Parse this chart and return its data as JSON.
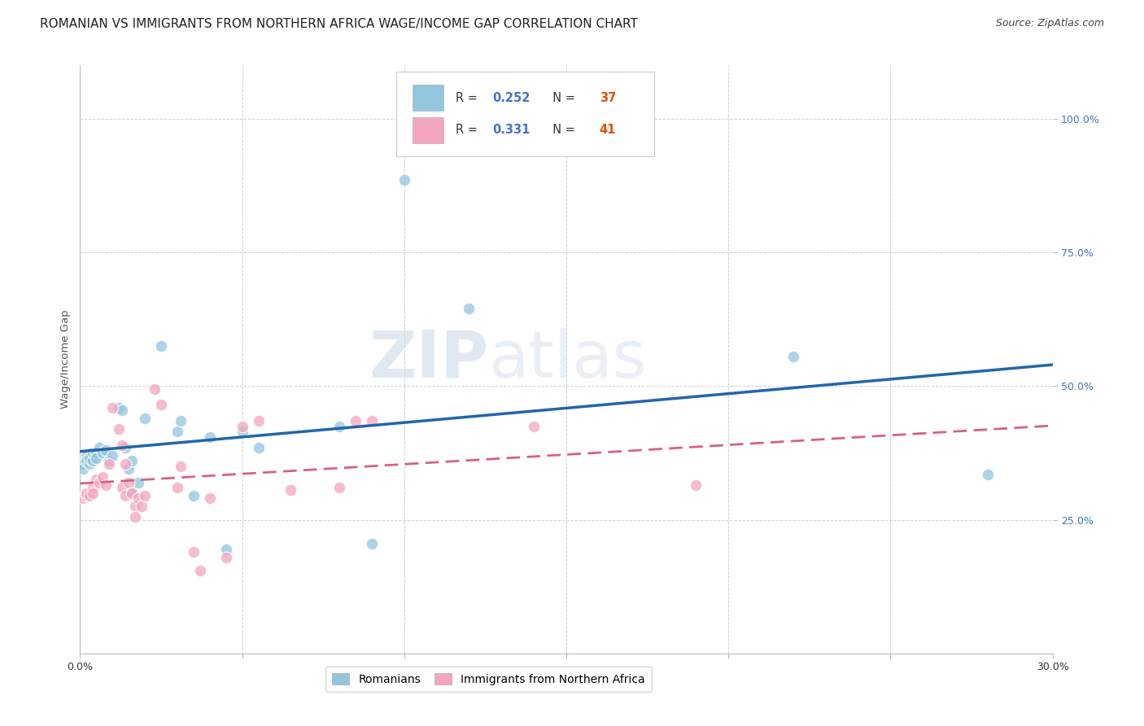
{
  "title": "ROMANIAN VS IMMIGRANTS FROM NORTHERN AFRICA WAGE/INCOME GAP CORRELATION CHART",
  "source": "Source: ZipAtlas.com",
  "ylabel": "Wage/Income Gap",
  "xmin": 0.0,
  "xmax": 0.3,
  "ymin": 0.0,
  "ymax": 1.1,
  "r_blue": "0.252",
  "n_blue": "37",
  "r_pink": "0.331",
  "n_pink": "41",
  "blue_color": "#92c5de",
  "pink_color": "#f4a6be",
  "blue_line_color": "#2166ac",
  "pink_line_color": "#d6608a",
  "blue_scatter": [
    [
      0.001,
      0.355
    ],
    [
      0.001,
      0.345
    ],
    [
      0.002,
      0.37
    ],
    [
      0.002,
      0.36
    ],
    [
      0.003,
      0.355
    ],
    [
      0.003,
      0.365
    ],
    [
      0.004,
      0.36
    ],
    [
      0.004,
      0.375
    ],
    [
      0.005,
      0.375
    ],
    [
      0.005,
      0.365
    ],
    [
      0.006,
      0.385
    ],
    [
      0.007,
      0.375
    ],
    [
      0.008,
      0.38
    ],
    [
      0.009,
      0.36
    ],
    [
      0.012,
      0.46
    ],
    [
      0.013,
      0.455
    ],
    [
      0.014,
      0.385
    ],
    [
      0.015,
      0.345
    ],
    [
      0.016,
      0.3
    ],
    [
      0.016,
      0.36
    ],
    [
      0.018,
      0.32
    ],
    [
      0.02,
      0.44
    ],
    [
      0.025,
      0.575
    ],
    [
      0.03,
      0.415
    ],
    [
      0.031,
      0.435
    ],
    [
      0.035,
      0.295
    ],
    [
      0.04,
      0.405
    ],
    [
      0.045,
      0.195
    ],
    [
      0.05,
      0.415
    ],
    [
      0.055,
      0.385
    ],
    [
      0.08,
      0.425
    ],
    [
      0.09,
      0.205
    ],
    [
      0.1,
      0.885
    ],
    [
      0.12,
      0.645
    ],
    [
      0.22,
      0.555
    ],
    [
      0.28,
      0.335
    ],
    [
      0.01,
      0.37
    ]
  ],
  "pink_scatter": [
    [
      0.001,
      0.295
    ],
    [
      0.001,
      0.29
    ],
    [
      0.002,
      0.295
    ],
    [
      0.002,
      0.3
    ],
    [
      0.003,
      0.295
    ],
    [
      0.004,
      0.31
    ],
    [
      0.004,
      0.3
    ],
    [
      0.005,
      0.325
    ],
    [
      0.006,
      0.32
    ],
    [
      0.007,
      0.33
    ],
    [
      0.008,
      0.315
    ],
    [
      0.009,
      0.355
    ],
    [
      0.01,
      0.46
    ],
    [
      0.012,
      0.42
    ],
    [
      0.013,
      0.39
    ],
    [
      0.013,
      0.31
    ],
    [
      0.014,
      0.295
    ],
    [
      0.014,
      0.355
    ],
    [
      0.015,
      0.32
    ],
    [
      0.016,
      0.3
    ],
    [
      0.017,
      0.275
    ],
    [
      0.017,
      0.255
    ],
    [
      0.018,
      0.29
    ],
    [
      0.019,
      0.275
    ],
    [
      0.02,
      0.295
    ],
    [
      0.023,
      0.495
    ],
    [
      0.025,
      0.465
    ],
    [
      0.03,
      0.31
    ],
    [
      0.031,
      0.35
    ],
    [
      0.035,
      0.19
    ],
    [
      0.037,
      0.155
    ],
    [
      0.04,
      0.29
    ],
    [
      0.045,
      0.18
    ],
    [
      0.05,
      0.425
    ],
    [
      0.055,
      0.435
    ],
    [
      0.065,
      0.305
    ],
    [
      0.08,
      0.31
    ],
    [
      0.085,
      0.435
    ],
    [
      0.09,
      0.435
    ],
    [
      0.14,
      0.425
    ],
    [
      0.19,
      0.315
    ]
  ],
  "watermark_zip": "ZIP",
  "watermark_atlas": "atlas",
  "title_fontsize": 11,
  "source_fontsize": 9,
  "tick_fontsize": 9
}
